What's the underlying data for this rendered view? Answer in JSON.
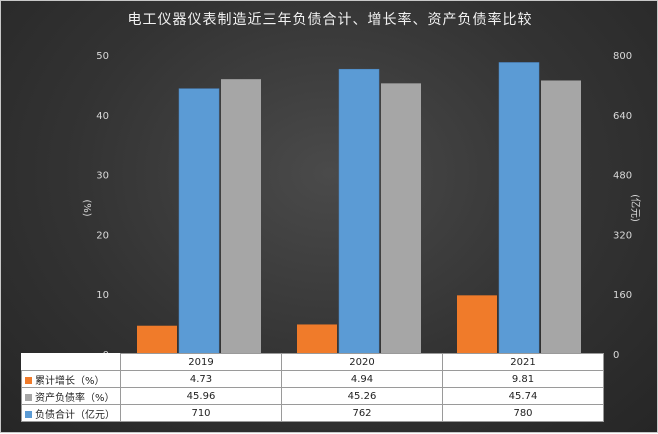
{
  "chart_data": {
    "type": "bar",
    "title": "电工仪器仪表制造近三年负债合计、增长率、资产负债率比较",
    "categories": [
      "2019",
      "2020",
      "2021"
    ],
    "series": [
      {
        "name": "累计增长（%）",
        "axis": "left",
        "color": "#f07b2a",
        "values": [
          4.73,
          4.94,
          9.81
        ],
        "labels": [
          "4.73",
          "4.94",
          "9.81"
        ]
      },
      {
        "name": "资产负债率（%）",
        "axis": "left",
        "color": "#a6a6a6",
        "values": [
          45.96,
          45.26,
          45.74
        ],
        "labels": [
          "45.96",
          "45.26",
          "45.74"
        ]
      },
      {
        "name": "负债合计（亿元）",
        "axis": "right",
        "color": "#5b9bd5",
        "values": [
          710,
          762,
          780
        ],
        "labels": [
          "710",
          "762",
          "780"
        ]
      }
    ],
    "bar_order": [
      0,
      2,
      1
    ],
    "ylabel": "(%)",
    "y2label": "(亿元)",
    "ylim": [
      0,
      50
    ],
    "y2lim": [
      0,
      800
    ],
    "yticks": [
      "0",
      "10",
      "20",
      "30",
      "40",
      "50"
    ],
    "y2ticks": [
      "0",
      "160",
      "320",
      "480",
      "640",
      "800"
    ],
    "grid": false,
    "legend": "data-table"
  }
}
